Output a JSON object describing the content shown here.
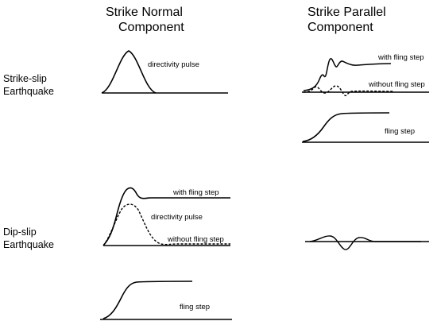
{
  "headers": {
    "col1_line1": "Strike Normal",
    "col1_line2": "Component",
    "col2_line1": "Strike Parallel",
    "col2_line2": "Component"
  },
  "rows": {
    "row1_line1": "Strike-slip",
    "row1_line2": "Earthquake",
    "row2_line1": "Dip-slip",
    "row2_line2": "Earthquake"
  },
  "annotations": {
    "ss_normal_pulse": "directivity pulse",
    "ss_parallel_with": "with fling step",
    "ss_parallel_without": "without fling step",
    "ss_parallel_fling": "fling step",
    "ds_normal_with": "with fling step",
    "ds_normal_pulse": "directivity pulse",
    "ds_normal_without": "without fling step",
    "ds_normal_fling": "fling step"
  }
}
